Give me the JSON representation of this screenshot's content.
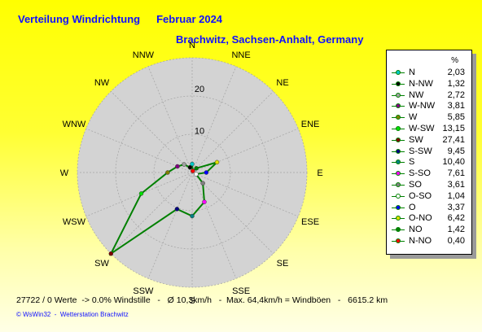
{
  "header": {
    "title": "Verteilung Windrichtung",
    "period": "Februar 2024",
    "location": "Brachwitz, Sachsen-Anhalt, Germany"
  },
  "chart_data": {
    "type": "radar",
    "title": "Verteilung Windrichtung   Februar 2024",
    "subtitle": "Brachwitz, Sachsen-Anhalt, Germany",
    "unit": "%",
    "radial_ticks": [
      10,
      20
    ],
    "radial_max": 27.41,
    "directions": [
      "N",
      "NNE",
      "NE",
      "ENE",
      "E",
      "ESE",
      "SE",
      "SSE",
      "S",
      "SSW",
      "SW",
      "WSW",
      "W",
      "WNW",
      "NW",
      "NNW"
    ],
    "series": [
      {
        "label": "N",
        "direction": "N",
        "value": 2.03,
        "color": "#00c8c8"
      },
      {
        "label": "N-NW",
        "direction": "NNW",
        "value": 1.32,
        "color": "#000000"
      },
      {
        "label": "NW",
        "direction": "NW",
        "value": 2.72,
        "color": "#a0a0a0"
      },
      {
        "label": "W-NW",
        "direction": "WNW",
        "value": 3.81,
        "color": "#800080"
      },
      {
        "label": "W",
        "direction": "W",
        "value": 5.85,
        "color": "#808000"
      },
      {
        "label": "W-SW",
        "direction": "WSW",
        "value": 13.15,
        "color": "#00e000"
      },
      {
        "label": "SW",
        "direction": "SW",
        "value": 27.41,
        "color": "#800000"
      },
      {
        "label": "S-SW",
        "direction": "SSW",
        "value": 9.45,
        "color": "#000080"
      },
      {
        "label": "S",
        "direction": "S",
        "value": 10.4,
        "color": "#008080"
      },
      {
        "label": "S-SO",
        "direction": "SSE",
        "value": 7.61,
        "color": "#ff00ff"
      },
      {
        "label": "SO",
        "direction": "SE",
        "value": 3.61,
        "color": "#808080"
      },
      {
        "label": "O-SO",
        "direction": "ESE",
        "value": 1.04,
        "color": "#ffffff"
      },
      {
        "label": "O",
        "direction": "E",
        "value": 3.37,
        "color": "#0000ff"
      },
      {
        "label": "O-NO",
        "direction": "ENE",
        "value": 6.42,
        "color": "#e0e000"
      },
      {
        "label": "NO",
        "direction": "NE",
        "value": 1.42,
        "color": "#008000"
      },
      {
        "label": "N-NO",
        "direction": "NNE",
        "value": 0.4,
        "color": "#ff0000"
      }
    ],
    "line_color": "#008000",
    "background_color": "#d3d3d3"
  },
  "footer": {
    "stats": "27722 / 0 Werte  -> 0.0% Windstille   -   Ø 10,3km/h   -  Max. 64,4km/h = Windböen   -   6615.2 km",
    "copyright": "© WsWin32  -  Wetterstation Brachwitz"
  }
}
